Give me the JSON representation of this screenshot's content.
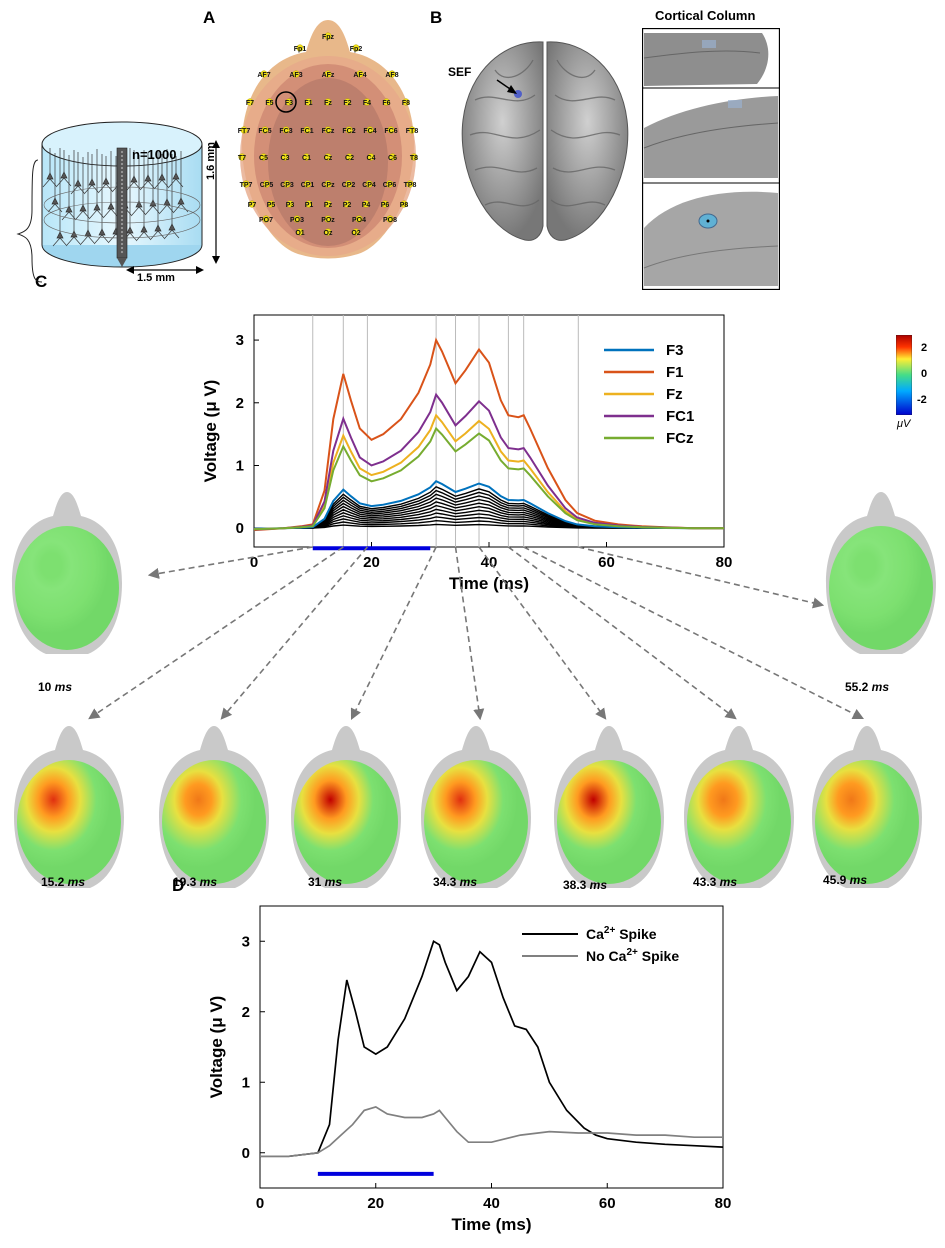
{
  "panels": {
    "a": "A",
    "b": "B",
    "c": "C",
    "d": "D"
  },
  "column_model": {
    "n_label": "n=1000",
    "height_label": "1.6 mm",
    "width_label": "1.5 mm"
  },
  "electrode_map": {
    "labels": [
      "Fpz",
      "Fp1",
      "Fp2",
      "AF7",
      "AF3",
      "AFz",
      "AF4",
      "AF8",
      "F7",
      "F5",
      "F3",
      "F1",
      "Fz",
      "F2",
      "F4",
      "F6",
      "F8",
      "FT7",
      "FC5",
      "FC3",
      "FC1",
      "FCz",
      "FC2",
      "FC4",
      "FC6",
      "FT8",
      "T7",
      "C5",
      "C3",
      "C1",
      "Cz",
      "C2",
      "C4",
      "C6",
      "T8",
      "TP7",
      "CP5",
      "CP3",
      "CP1",
      "CPz",
      "CP2",
      "CP4",
      "CP6",
      "TP8",
      "P7",
      "P5",
      "P3",
      "P1",
      "Pz",
      "P2",
      "P4",
      "P6",
      "P8",
      "PO7",
      "PO3",
      "POz",
      "PO4",
      "PO8",
      "O1",
      "Oz",
      "O2"
    ],
    "highlighted": "F1"
  },
  "brain": {
    "sef_label": "SEF",
    "cortical_title": "Cortical Column"
  },
  "topomaps": {
    "colorbar": {
      "ticks": [
        "2",
        "0",
        "-2"
      ],
      "unit": "μV",
      "colors": [
        "#0000cc",
        "#00aaff",
        "#44dd88",
        "#ffee33",
        "#ff3300",
        "#aa0000"
      ]
    },
    "time_unit": "ms",
    "items": [
      {
        "time": "10",
        "intensity": 0.0
      },
      {
        "time": "55.2",
        "intensity": 0.05
      },
      {
        "time": "15.2",
        "intensity": 0.82
      },
      {
        "time": "19.3",
        "intensity": 0.5
      },
      {
        "time": "31",
        "intensity": 1.0
      },
      {
        "time": "34.3",
        "intensity": 0.78
      },
      {
        "time": "38.3",
        "intensity": 0.95
      },
      {
        "time": "43.3",
        "intensity": 0.6
      },
      {
        "time": "45.9",
        "intensity": 0.6
      }
    ]
  },
  "chart_data": [
    {
      "panel": "C",
      "type": "line",
      "xlabel": "Time (ms)",
      "ylabel": "Voltage (μ V)",
      "xlim": [
        0,
        80
      ],
      "ylim": [
        -0.3,
        3.4
      ],
      "xticks": [
        0,
        20,
        40,
        60,
        80
      ],
      "yticks": [
        0,
        1,
        2,
        3
      ],
      "legend_position": "top-right",
      "stimulus_bar": {
        "x": [
          10,
          30
        ],
        "y": -0.32,
        "color": "#0000dd"
      },
      "vertical_markers": [
        10,
        15.2,
        19.3,
        31,
        34.3,
        38.3,
        43.3,
        45.9,
        55.2
      ],
      "base_x": [
        0,
        5,
        8,
        10,
        12,
        13.5,
        15.2,
        16.5,
        18,
        20,
        22,
        25,
        28,
        30,
        31,
        32,
        34.3,
        36,
        38.3,
        40,
        42,
        43.3,
        45,
        45.9,
        47,
        50,
        53,
        55,
        58,
        62,
        66,
        70,
        75,
        80
      ],
      "base_shape": [
        -0.01,
        0,
        0.01,
        0.02,
        0.2,
        0.58,
        0.82,
        0.68,
        0.53,
        0.47,
        0.5,
        0.58,
        0.72,
        0.87,
        1.0,
        0.94,
        0.77,
        0.84,
        0.95,
        0.88,
        0.68,
        0.6,
        0.59,
        0.6,
        0.53,
        0.32,
        0.15,
        0.08,
        0.04,
        0.02,
        0.01,
        0.005,
        0.0,
        0.0
      ],
      "series": [
        {
          "name": "F3",
          "color": "#0072bd",
          "scale": 0.25
        },
        {
          "name": "F1",
          "color": "#d95319",
          "scale": 1.0
        },
        {
          "name": "Fz",
          "color": "#edb120",
          "scale": 0.6
        },
        {
          "name": "FC1",
          "color": "#7e2f8e",
          "scale": 0.71
        },
        {
          "name": "FCz",
          "color": "#77ac30",
          "scale": 0.53
        }
      ],
      "background_channels": {
        "color": "#000000",
        "scales": [
          0.02,
          0.04,
          0.06,
          0.08,
          0.1,
          0.12,
          0.14,
          0.16,
          0.18,
          0.2,
          0.22
        ]
      }
    },
    {
      "panel": "D",
      "type": "line",
      "xlabel": "Time (ms)",
      "ylabel": "Voltage (μ V)",
      "xlim": [
        0,
        80
      ],
      "ylim": [
        -0.5,
        3.5
      ],
      "xticks": [
        0,
        20,
        40,
        60,
        80
      ],
      "yticks": [
        0,
        1,
        2,
        3
      ],
      "legend_position": "top-right",
      "stimulus_bar": {
        "x": [
          10,
          30
        ],
        "y": -0.3,
        "color": "#0000dd"
      },
      "series": [
        {
          "name": "Ca",
          "sup": "2+",
          "suffix": " Spike",
          "color": "#000000",
          "x": [
            0,
            5,
            10,
            12,
            13.5,
            15,
            16.5,
            18,
            20,
            22,
            25,
            28,
            30,
            31,
            32,
            34,
            36,
            38,
            40,
            42,
            44,
            46,
            48,
            50,
            53,
            56,
            58,
            60,
            65,
            70,
            75,
            80
          ],
          "y": [
            -0.05,
            -0.05,
            0.0,
            0.4,
            1.6,
            2.45,
            2.0,
            1.5,
            1.4,
            1.5,
            1.9,
            2.5,
            3.0,
            2.95,
            2.7,
            2.3,
            2.5,
            2.85,
            2.7,
            2.2,
            1.8,
            1.75,
            1.5,
            1.0,
            0.6,
            0.35,
            0.25,
            0.2,
            0.15,
            0.12,
            0.1,
            0.08
          ]
        },
        {
          "name": "No Ca",
          "sup": "2+",
          "suffix": " Spike",
          "color": "#808080",
          "x": [
            0,
            5,
            10,
            12,
            14,
            16,
            18,
            20,
            22,
            25,
            28,
            30,
            31,
            32,
            34,
            36,
            40,
            45,
            50,
            55,
            60,
            65,
            70,
            75,
            80
          ],
          "y": [
            -0.05,
            -0.05,
            0.0,
            0.1,
            0.25,
            0.4,
            0.6,
            0.65,
            0.55,
            0.5,
            0.5,
            0.55,
            0.6,
            0.5,
            0.3,
            0.15,
            0.15,
            0.25,
            0.3,
            0.28,
            0.28,
            0.25,
            0.25,
            0.22,
            0.22
          ]
        }
      ]
    }
  ]
}
